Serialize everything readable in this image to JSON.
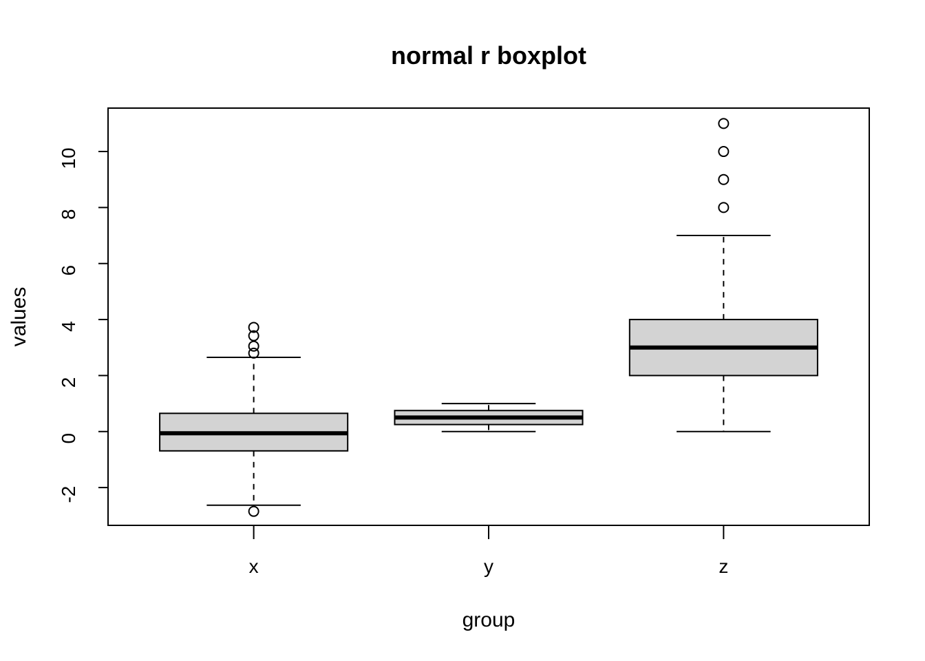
{
  "chart_data": {
    "type": "boxplot",
    "title": "normal r boxplot",
    "xlabel": "group",
    "ylabel": "values",
    "ylim": [
      -3.35,
      11.55
    ],
    "yticks": [
      -2,
      0,
      2,
      4,
      6,
      8,
      10
    ],
    "grid": false,
    "legend": "none",
    "box_fill": "#d3d3d3",
    "line_color": "#000000",
    "categories": [
      "x",
      "y",
      "z"
    ],
    "boxes": [
      {
        "category": "x",
        "whisker_low": -2.63,
        "q1": -0.69,
        "median": -0.06,
        "q3": 0.65,
        "whisker_high": 2.65,
        "outliers": [
          -2.85,
          2.8,
          3.05,
          3.42,
          3.72
        ]
      },
      {
        "category": "y",
        "whisker_low": 0.0,
        "q1": 0.25,
        "median": 0.5,
        "q3": 0.75,
        "whisker_high": 1.0,
        "outliers": []
      },
      {
        "category": "z",
        "whisker_low": 0.0,
        "q1": 2.0,
        "median": 3.0,
        "q3": 4.0,
        "whisker_high": 7.0,
        "outliers": [
          8,
          9,
          10,
          11
        ]
      }
    ]
  }
}
